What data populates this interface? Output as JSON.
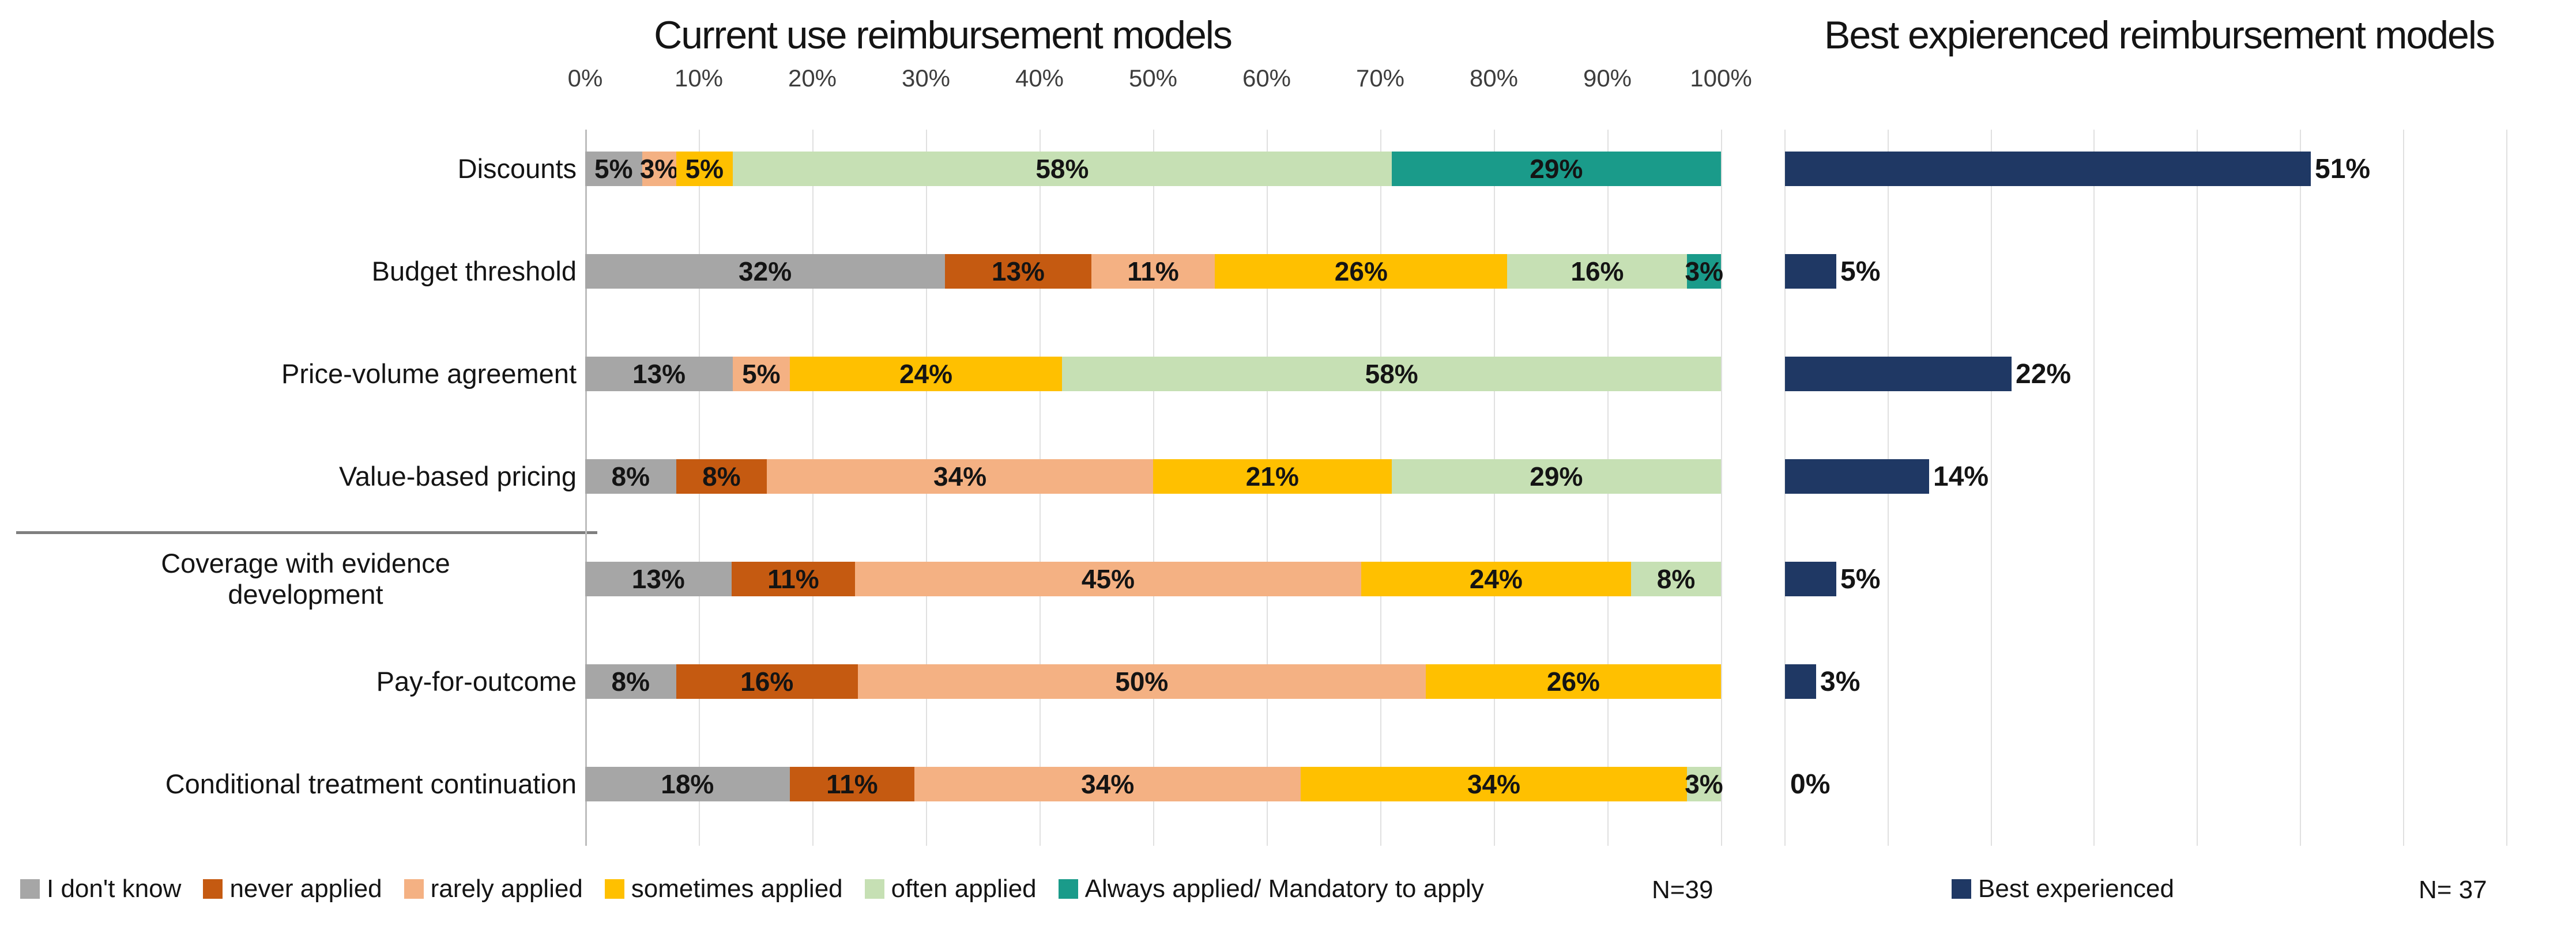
{
  "chart_data": [
    {
      "type": "bar",
      "subtype": "horizontal-stacked",
      "title": "Current use reimbursement models",
      "n_label": "N=39",
      "xlabel": "",
      "ylabel": "",
      "xlim": [
        0,
        100
      ],
      "grid": true,
      "axis_ticks": [
        "0%",
        "10%",
        "20%",
        "30%",
        "40%",
        "50%",
        "60%",
        "70%",
        "80%",
        "90%",
        "100%"
      ],
      "legend_position": "bottom",
      "categories": [
        "Discounts",
        "Budget threshold",
        "Price-volume agreement",
        "Value-based pricing",
        "Coverage with evidence\ndevelopment",
        "Pay-for-outcome",
        "Conditional treatment continuation"
      ],
      "series": [
        {
          "name": "I don't know",
          "color": "#a6a6a6",
          "values": [
            5,
            32,
            13,
            8,
            13,
            8,
            18
          ]
        },
        {
          "name": "never applied",
          "color": "#c55a11",
          "values": [
            0,
            13,
            0,
            8,
            11,
            16,
            11
          ]
        },
        {
          "name": "rarely applied",
          "color": "#f4b183",
          "values": [
            3,
            11,
            5,
            34,
            45,
            50,
            34
          ]
        },
        {
          "name": "sometimes applied",
          "color": "#ffc000",
          "values": [
            5,
            26,
            24,
            21,
            24,
            26,
            34
          ]
        },
        {
          "name": "often applied",
          "color": "#c6e0b4",
          "values": [
            58,
            16,
            58,
            29,
            8,
            0,
            3
          ]
        },
        {
          "name": "Always applied/ Mandatory to apply",
          "color": "#1a9b8a",
          "values": [
            29,
            3,
            0,
            0,
            0,
            0,
            0
          ]
        }
      ]
    },
    {
      "type": "bar",
      "subtype": "horizontal",
      "title": "Best expierenced reimbursement models",
      "n_label": "N= 37",
      "series_name": "Best experienced",
      "color": "#1f3864",
      "xlim": [
        0,
        70
      ],
      "grid": true,
      "gridline_step_pct": 10,
      "values": [
        51,
        5,
        22,
        14,
        5,
        3,
        0
      ]
    }
  ]
}
